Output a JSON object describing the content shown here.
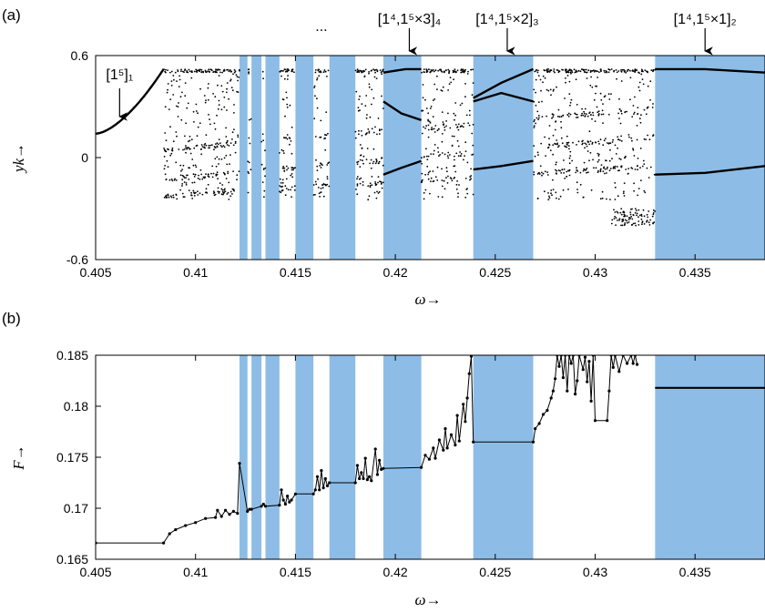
{
  "chart_data": [
    {
      "panel": "(a)",
      "type": "scatter",
      "xlabel": "ω→",
      "ylabel": "yk→",
      "xlim": [
        0.405,
        0.4385
      ],
      "ylim": [
        -0.6,
        0.6
      ],
      "xticks": [
        "0.405",
        "0.41",
        "0.415",
        "0.42",
        "0.425",
        "0.43",
        "0.435"
      ],
      "yticks": [
        "-0.6",
        "0",
        "0.6"
      ],
      "shaded_color": "#8dbde6",
      "shaded_intervals": [
        [
          0.4122,
          0.4126
        ],
        [
          0.4128,
          0.4133
        ],
        [
          0.4135,
          0.4142
        ],
        [
          0.415,
          0.4159
        ],
        [
          0.4167,
          0.418
        ],
        [
          0.4194,
          0.4213
        ],
        [
          0.4239,
          0.4269
        ],
        [
          0.433,
          0.4385
        ]
      ],
      "annotations": [
        {
          "text": "[1⁵]₁",
          "x": 0.4062
        },
        {
          "text": "...",
          "x": 0.4163
        },
        {
          "text": "[1⁴,1⁵×3]₄",
          "x": 0.4207
        },
        {
          "text": "[1⁴,1⁵×2]₃",
          "x": 0.4256
        },
        {
          "text": "[1⁴,1⁵×1]₂",
          "x": 0.4355
        }
      ]
    },
    {
      "panel": "(b)",
      "type": "line",
      "xlabel": "ω→",
      "ylabel": "F→",
      "xlim": [
        0.405,
        0.4385
      ],
      "ylim": [
        0.165,
        0.185
      ],
      "xticks": [
        "0.405",
        "0.41",
        "0.415",
        "0.42",
        "0.425",
        "0.43",
        "0.435"
      ],
      "yticks": [
        "0.165",
        "0.17",
        "0.175",
        "0.18",
        "0.185"
      ],
      "shaded_color": "#8dbde6",
      "shaded_intervals": [
        [
          0.4122,
          0.4126
        ],
        [
          0.4128,
          0.4133
        ],
        [
          0.4135,
          0.4142
        ],
        [
          0.415,
          0.4159
        ],
        [
          0.4167,
          0.418
        ],
        [
          0.4194,
          0.4213
        ],
        [
          0.4239,
          0.4269
        ],
        [
          0.433,
          0.4385
        ]
      ],
      "series": [
        {
          "x": [
            0.405,
            0.4084,
            0.4087,
            0.409,
            0.4095,
            0.41,
            0.4105,
            0.411,
            0.4111,
            0.4113,
            0.4115,
            0.4117,
            0.4119,
            0.4121,
            0.4122,
            0.4126,
            0.4127,
            0.4128,
            0.4133,
            0.4134,
            0.4135,
            0.4142,
            0.4143,
            0.4144,
            0.4145,
            0.4146,
            0.4147,
            0.4148,
            0.415,
            0.4159,
            0.416,
            0.4161,
            0.4162,
            0.4163,
            0.4164,
            0.4165,
            0.4166,
            0.4167,
            0.418,
            0.4181,
            0.4182,
            0.4183,
            0.4184,
            0.4185,
            0.4186,
            0.4187,
            0.4188,
            0.419,
            0.4191,
            0.4192,
            0.4193,
            0.4194,
            0.4213,
            0.4215,
            0.4217,
            0.4219,
            0.422,
            0.4222,
            0.4224,
            0.4225,
            0.4226,
            0.4228,
            0.423,
            0.4231,
            0.4232,
            0.4234,
            0.4235,
            0.4236,
            0.4237,
            0.4238,
            0.4239,
            0.4269,
            0.427,
            0.4272,
            0.4274,
            0.4276,
            0.4278,
            0.4279,
            0.428,
            0.4281,
            0.4282,
            0.4283,
            0.4284,
            0.4285,
            0.4286,
            0.4287,
            0.4288,
            0.4289,
            0.429,
            0.4291,
            0.4292,
            0.4294,
            0.4295,
            0.4296,
            0.4297,
            0.4298,
            0.4299,
            0.43,
            0.4306,
            0.4307,
            0.4308,
            0.4309,
            0.431,
            0.4312,
            0.4314,
            0.4316,
            0.4318,
            0.4319,
            0.432,
            0.4321
          ],
          "values": [
            0.1666,
            0.1666,
            0.1675,
            0.1679,
            0.1683,
            0.1686,
            0.169,
            0.1691,
            0.1698,
            0.1692,
            0.1698,
            0.1694,
            0.1697,
            0.1695,
            0.1744,
            0.1697,
            0.1699,
            0.1699,
            0.1702,
            0.1704,
            0.1702,
            0.1703,
            0.1718,
            0.1708,
            0.1704,
            0.1712,
            0.1706,
            0.1708,
            0.1714,
            0.1714,
            0.1718,
            0.1731,
            0.1718,
            0.1737,
            0.172,
            0.1729,
            0.1722,
            0.1725,
            0.1725,
            0.1742,
            0.1729,
            0.1735,
            0.1729,
            0.1749,
            0.1728,
            0.1731,
            0.1727,
            0.1758,
            0.1733,
            0.1747,
            0.1738,
            0.1739,
            0.174,
            0.1752,
            0.1748,
            0.1759,
            0.1749,
            0.1767,
            0.1757,
            0.1778,
            0.1759,
            0.1772,
            0.1762,
            0.1791,
            0.1766,
            0.1802,
            0.1785,
            0.1808,
            0.1832,
            0.1849,
            0.1765,
            0.1765,
            0.1778,
            0.1783,
            0.1792,
            0.1796,
            0.1808,
            0.1815,
            0.1827,
            0.185,
            0.1839,
            0.185,
            0.1828,
            0.185,
            0.1815,
            0.185,
            0.1842,
            0.185,
            0.1812,
            0.1825,
            0.185,
            0.1836,
            0.1848,
            0.1824,
            0.1844,
            0.1805,
            0.185,
            0.1786,
            0.1786,
            0.1815,
            0.185,
            0.1838,
            0.185,
            0.1834,
            0.185,
            0.1842,
            0.185,
            0.1842,
            0.185,
            0.1841
          ]
        },
        {
          "x": [
            0.433,
            0.4385
          ],
          "values": [
            0.1818,
            0.1818
          ]
        }
      ]
    }
  ]
}
